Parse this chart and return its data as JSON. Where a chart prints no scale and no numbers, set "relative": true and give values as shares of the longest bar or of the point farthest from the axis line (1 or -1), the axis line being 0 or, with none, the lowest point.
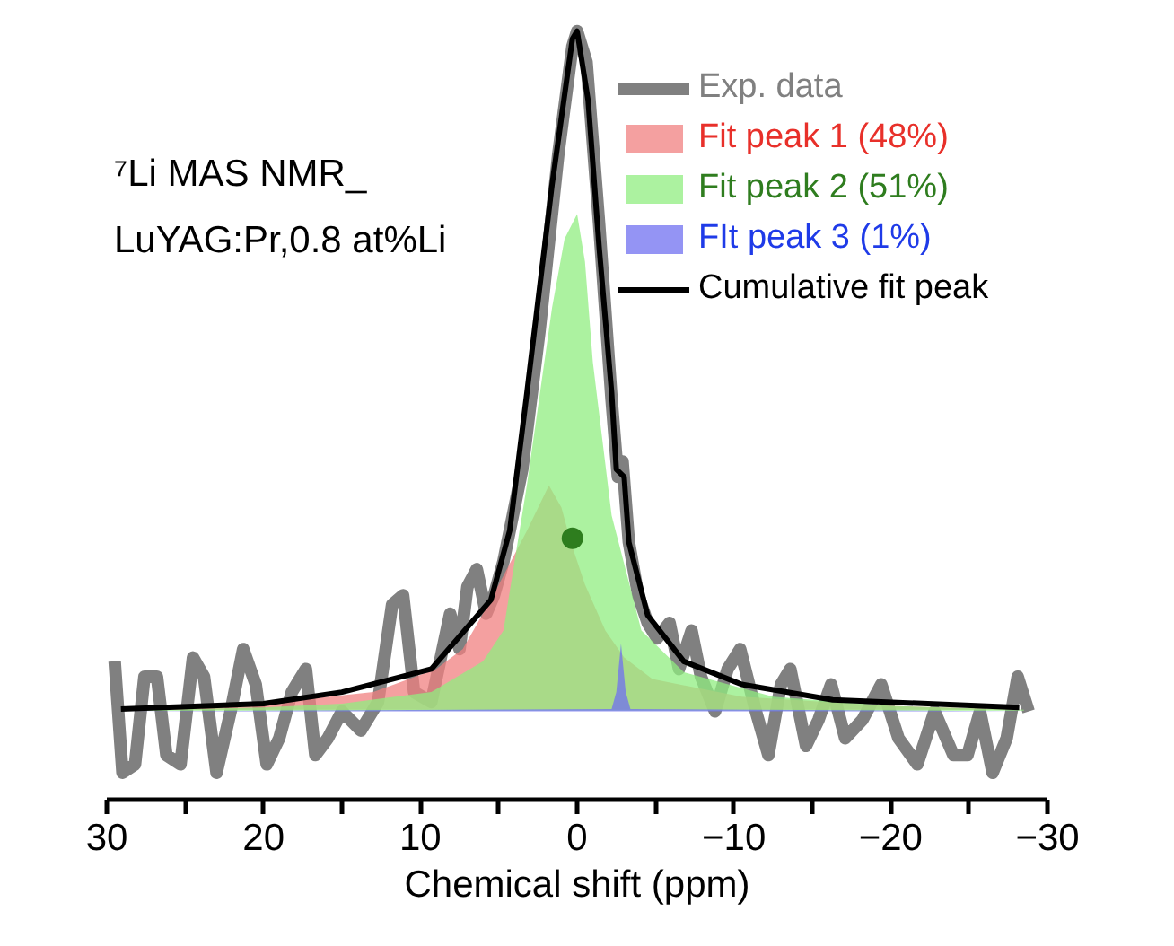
{
  "chart_data": {
    "type": "area",
    "relative": true,
    "xlabel": "Chemical shift (ppm)",
    "xlim": [
      30,
      -30
    ],
    "xticks": [
      30,
      {
        "value": 25,
        "label": null
      },
      20,
      {
        "value": 15,
        "label": null
      },
      10,
      {
        "value": 5,
        "label": null
      },
      0,
      {
        "value": -5,
        "label": null
      },
      -10,
      {
        "value": -15,
        "label": null
      },
      -20,
      {
        "value": -25,
        "label": null
      },
      -30
    ],
    "grid": false,
    "legend": "top right",
    "line_style": "solid",
    "annotations": [
      "⁷Li MAS NMR_\nLuYAG:Pr,0.8 at%Li"
    ],
    "series": [
      {
        "name": "Exp. data",
        "type": "line",
        "color": "#808080",
        "x": [
          29.5,
          29.0,
          28.2,
          27.6,
          26.8,
          26.2,
          25.3,
          24.5,
          23.8,
          23.0,
          22.1,
          21.3,
          20.5,
          19.8,
          19.0,
          18.2,
          17.3,
          16.7,
          15.9,
          15.0,
          13.8,
          12.7,
          11.8,
          11.1,
          10.4,
          9.3,
          8.1,
          7.5,
          7.0,
          6.4,
          5.8,
          5.3,
          4.7,
          3.5,
          2.4,
          1.2,
          0.3,
          0.0,
          -0.6,
          -1.4,
          -2.2,
          -2.6,
          -2.9,
          -3.3,
          -3.9,
          -4.5,
          -5.1,
          -5.9,
          -6.5,
          -7.3,
          -7.9,
          -8.8,
          -9.6,
          -10.4,
          -11.4,
          -12.2,
          -13.0,
          -13.6,
          -14.6,
          -15.4,
          -16.2,
          -17.1,
          -18.2,
          -19.4,
          -20.5,
          -21.7,
          -22.8,
          -24.0,
          -24.9,
          -25.7,
          -26.5,
          -27.4,
          -28.1,
          -28.8
        ],
        "values": [
          0.18,
          0.035,
          0.046,
          0.16,
          0.16,
          0.058,
          0.046,
          0.185,
          0.16,
          0.035,
          0.115,
          0.196,
          0.15,
          0.046,
          0.08,
          0.14,
          0.17,
          0.058,
          0.08,
          0.115,
          0.09,
          0.127,
          0.254,
          0.266,
          0.14,
          0.127,
          0.242,
          0.196,
          0.277,
          0.3,
          0.242,
          0.266,
          0.31,
          0.43,
          0.61,
          0.84,
          0.98,
          1.0,
          0.96,
          0.75,
          0.52,
          0.42,
          0.44,
          0.335,
          0.266,
          0.23,
          0.21,
          0.23,
          0.17,
          0.22,
          0.16,
          0.115,
          0.17,
          0.196,
          0.115,
          0.058,
          0.15,
          0.17,
          0.07,
          0.104,
          0.15,
          0.08,
          0.104,
          0.15,
          0.08,
          0.046,
          0.115,
          0.058,
          0.058,
          0.115,
          0.035,
          0.08,
          0.16,
          0.115
        ]
      },
      {
        "name": "Fit peak 1 (48%)",
        "color": "#f08080",
        "x": [
          29,
          20,
          13,
          9,
          7.3,
          5.5,
          3.2,
          1.8,
          1.0,
          0.4,
          -0.5,
          -1.8,
          -3,
          -4.8,
          -10.5,
          -20,
          -28.5
        ],
        "values": [
          0.117,
          0.125,
          0.14,
          0.17,
          0.196,
          0.26,
          0.35,
          0.409,
          0.38,
          0.335,
          0.28,
          0.22,
          0.185,
          0.157,
          0.134,
          0.122,
          0.117
        ]
      },
      {
        "name": "Fit peak 2 (51%)",
        "color": "#90ee80",
        "x": [
          29,
          20,
          15,
          9.3,
          6,
          4.7,
          3.2,
          1.6,
          0.8,
          0,
          -0.5,
          -1.0,
          -2.2,
          -4.1,
          -6.8,
          -12.5,
          -20,
          -28.5
        ],
        "values": [
          0.116,
          0.12,
          0.125,
          0.14,
          0.18,
          0.22,
          0.41,
          0.64,
          0.73,
          0.762,
          0.7,
          0.57,
          0.37,
          0.22,
          0.166,
          0.134,
          0.122,
          0.117
        ]
      },
      {
        "name": "FIt peak 3 (1%)",
        "color": "#7070f0",
        "x": [
          29,
          -2.2,
          -2.5,
          -2.8,
          -3.1,
          -3.4,
          -28.5
        ],
        "values": [
          0.115,
          0.118,
          0.14,
          0.203,
          0.14,
          0.118,
          0.115
        ]
      },
      {
        "name": null,
        "type": "scatter",
        "marker": "circle",
        "color": "#2e7d1e",
        "x": [
          0.3
        ],
        "values": [
          0.34
        ]
      },
      {
        "name": "Cumulative fit peak",
        "type": "line",
        "color": "#000000",
        "x": [
          29.1,
          20,
          15,
          9.3,
          5.5,
          4.3,
          3.2,
          1.6,
          0.3,
          0,
          -0.7,
          -1.4,
          -2.2,
          -2.5,
          -3.0,
          -3.3,
          -4.5,
          -6.8,
          -10.5,
          -16.3,
          -28.2
        ],
        "values": [
          0.118,
          0.125,
          0.14,
          0.17,
          0.26,
          0.35,
          0.53,
          0.8,
          0.99,
          1.0,
          0.91,
          0.72,
          0.53,
          0.43,
          0.42,
          0.335,
          0.24,
          0.18,
          0.15,
          0.13,
          0.12
        ]
      }
    ]
  }
}
